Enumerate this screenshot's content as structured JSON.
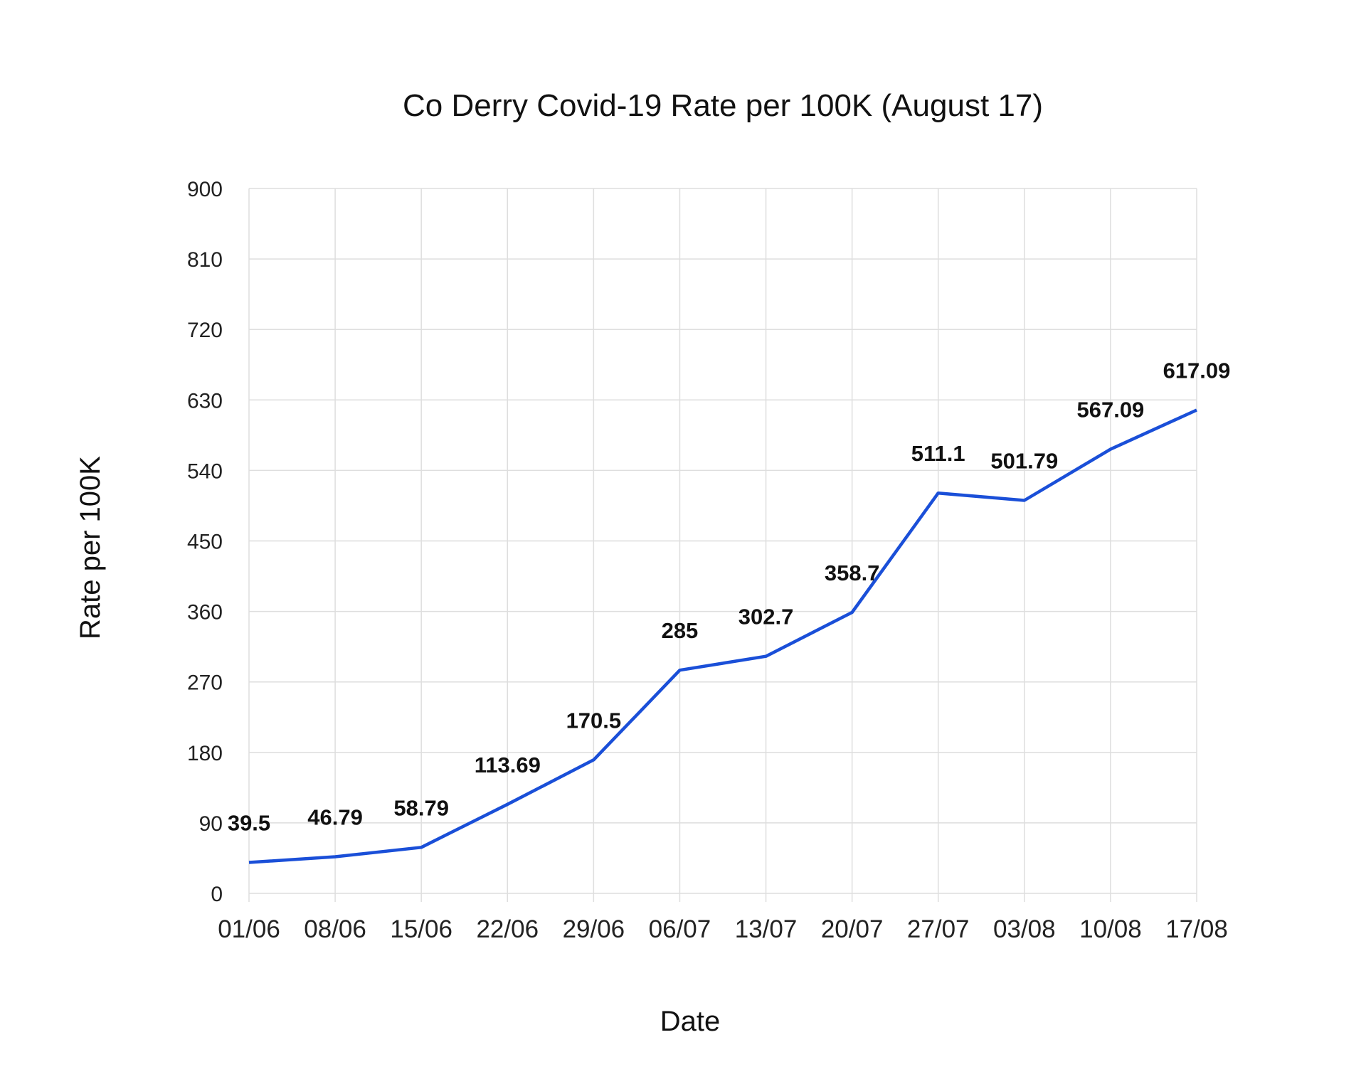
{
  "chart_data": {
    "type": "line",
    "title": "Co Derry Covid-19 Rate per 100K (August 17)",
    "xlabel": "Date",
    "ylabel": "Rate per 100K",
    "categories": [
      "01/06",
      "08/06",
      "15/06",
      "22/06",
      "29/06",
      "06/07",
      "13/07",
      "20/07",
      "27/07",
      "03/08",
      "10/08",
      "17/08"
    ],
    "series": [
      {
        "values": [
          39.5,
          46.79,
          58.79,
          113.69,
          170.5,
          285,
          302.7,
          358.7,
          511.1,
          501.79,
          567.09,
          617.09
        ],
        "labels": [
          "39.5",
          "46.79",
          "58.79",
          "113.69",
          "170.5",
          "285",
          "302.7",
          "358.7",
          "511.1",
          "501.79",
          "567.09",
          "617.09"
        ],
        "color": "#1a4fd8"
      }
    ],
    "ylim": [
      0,
      900
    ],
    "yticks": [
      "0",
      "90",
      "180",
      "270",
      "360",
      "450",
      "540",
      "630",
      "720",
      "810",
      "900"
    ],
    "grid": true,
    "legend": "none"
  }
}
